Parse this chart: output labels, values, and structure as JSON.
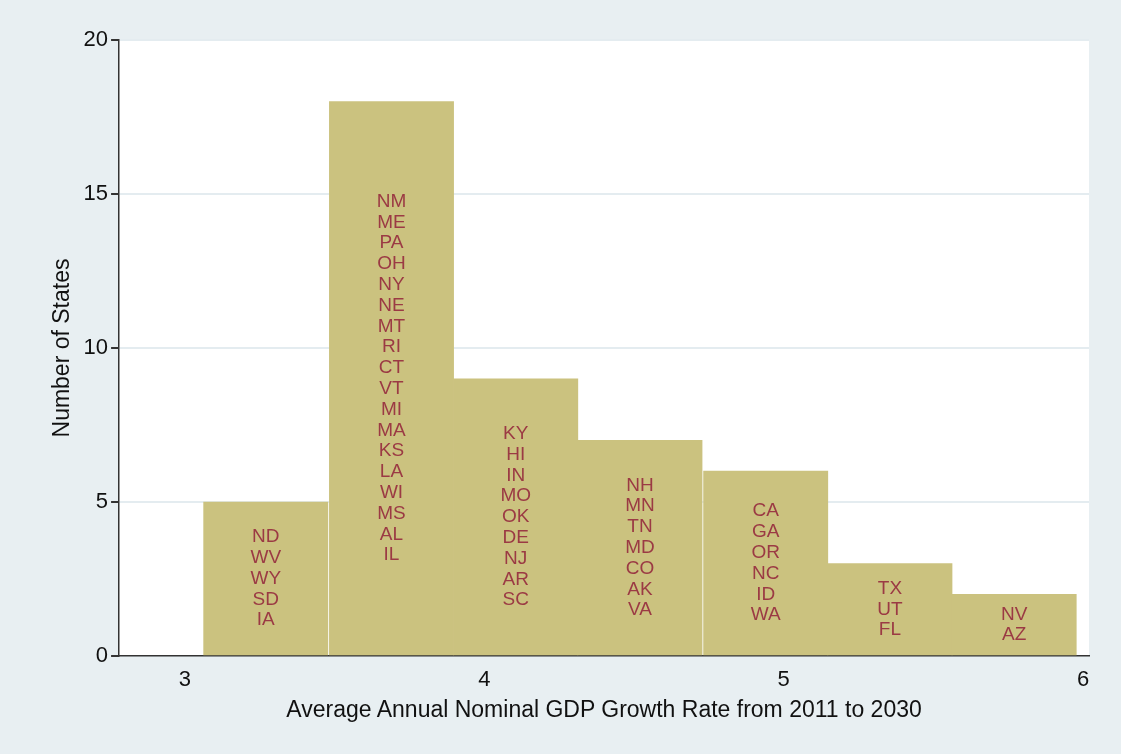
{
  "chart_data": {
    "type": "histogram",
    "xlabel": "Average Annual Nominal GDP Growth Rate from 2011 to 2030",
    "ylabel": "Number of States",
    "bins": [
      3.06,
      3.48,
      3.9,
      4.31,
      4.73,
      5.15,
      5.56,
      5.98
    ],
    "values": [
      5,
      18,
      9,
      7,
      6,
      3,
      2
    ],
    "color": "#cbc27f",
    "xlim": [
      2.78,
      6.02
    ],
    "xticks": [
      3,
      4,
      5,
      6
    ],
    "ylim": [
      0,
      20
    ],
    "yticks": [
      0,
      5,
      10,
      15,
      20
    ],
    "grid": "y",
    "legend": false,
    "annotations": [
      "ND\nWV\nWY\nSD\nIA",
      "NM\nME\nPA\nOH\nNY\nNE\nMT\nRI\nCT\nVT\nMI\nMA\nKS\nLA\nWI\nMS\nAL\nIL",
      "KY\nHI\nIN\nMO\nOK\nDE\nNJ\nAR\nSC",
      "NH\nMN\nTN\nMD\nCO\nAK\nVA",
      "CA\nGA\nOR\nNC\nID\nWA",
      "TX\nUT\nFL",
      "NV\nAZ"
    ]
  }
}
